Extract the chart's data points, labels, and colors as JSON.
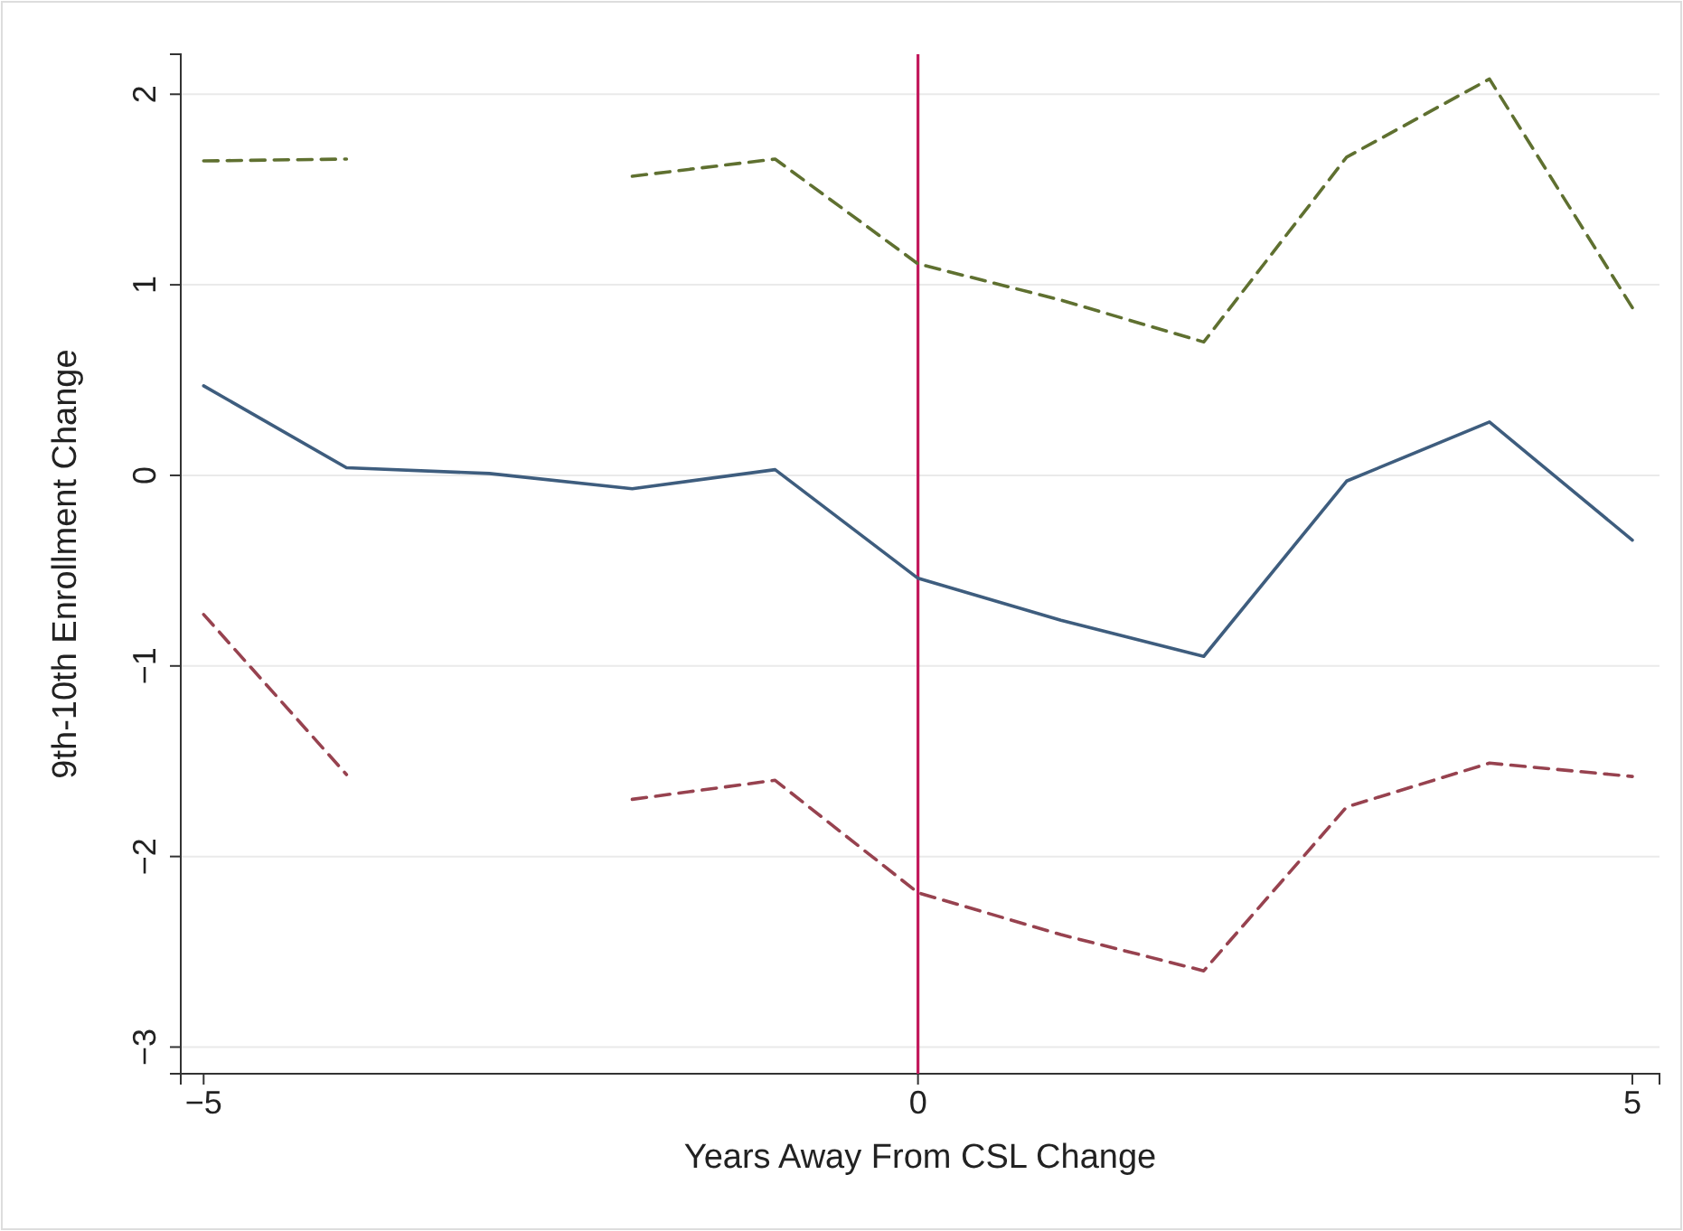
{
  "chart_data": {
    "type": "line",
    "xlabel": "Years Away From CSL Change",
    "ylabel": "9th-10th Enrollment Change",
    "x": [
      -5,
      -4,
      -3,
      -2,
      -1,
      0,
      1,
      2,
      3,
      4,
      5
    ],
    "series": [
      {
        "color": "#3e5d7e",
        "line_style": "solid",
        "values": [
          0.47,
          0.04,
          0.01,
          -0.07,
          0.03,
          -0.54,
          -0.76,
          -0.95,
          -0.03,
          0.28,
          -0.34
        ]
      },
      {
        "color": "#5f7030",
        "line_style": "dashed",
        "values": [
          1.65,
          1.66,
          null,
          1.57,
          1.66,
          1.11,
          0.92,
          0.7,
          1.67,
          2.08,
          0.88
        ]
      },
      {
        "color": "#97424f",
        "line_style": "dashed",
        "values": [
          -0.73,
          -1.57,
          null,
          -1.7,
          -1.6,
          -2.19,
          -2.41,
          -2.6,
          -1.74,
          -1.51,
          -1.58
        ]
      }
    ],
    "xlim": [
      -5.16,
      5.19
    ],
    "xticks": [
      -5,
      0,
      5
    ],
    "ylim": [
      -3.14,
      2.21
    ],
    "yticks": [
      -3,
      -2,
      -1,
      0,
      1,
      2
    ],
    "grid": "y",
    "marker": "none",
    "ref_lines": [
      {
        "axis": "x",
        "value": 0,
        "color": "#c2185b"
      }
    ]
  }
}
